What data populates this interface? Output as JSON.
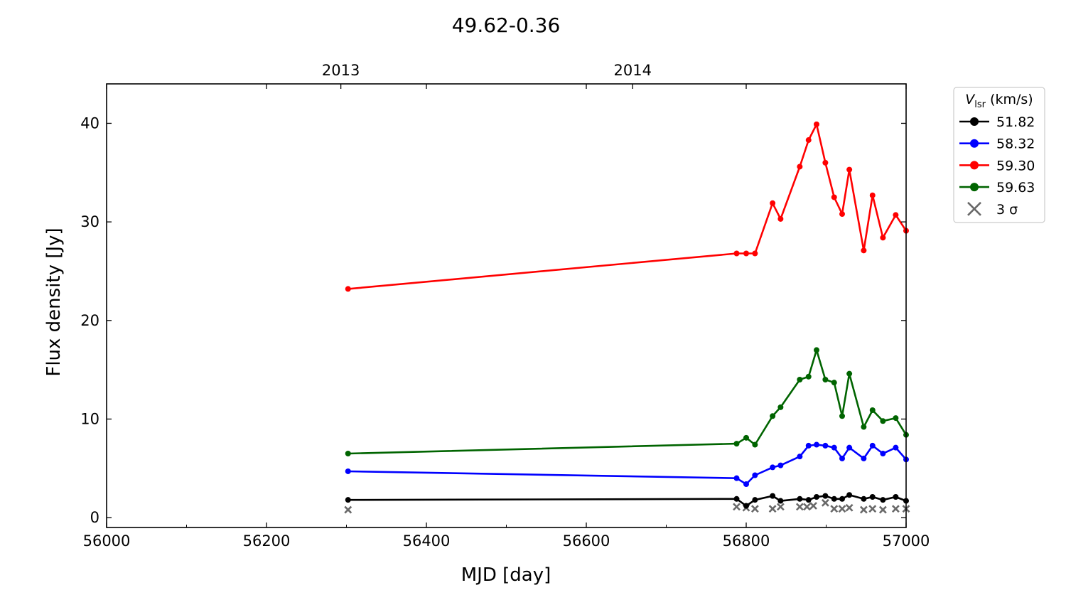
{
  "chart_data": {
    "type": "line",
    "title": "49.62-0.36",
    "xlabel": "MJD [day]",
    "ylabel": "Flux density [Jy]",
    "xlim": [
      56000,
      57000
    ],
    "ylim": [
      -1,
      44
    ],
    "x_ticks": [
      56000,
      56200,
      56400,
      56600,
      56800,
      57000
    ],
    "y_ticks": [
      0,
      10,
      20,
      30,
      40
    ],
    "top_axis": {
      "ticks": [
        {
          "x": 56293,
          "label": "2013"
        },
        {
          "x": 56658,
          "label": "2014"
        }
      ]
    },
    "grid": false,
    "legend": {
      "title_main": "V",
      "title_sub": "lsr",
      "title_unit": " (km/s)",
      "placement": "outside-right-top",
      "sigma_label": "3 σ"
    },
    "x": [
      56302,
      56788,
      56800,
      56811,
      56833,
      56843,
      56867,
      56878,
      56888,
      56899,
      56910,
      56920,
      56929,
      56947,
      56958,
      56971,
      56987,
      57000
    ],
    "series": [
      {
        "name": "51.82",
        "color": "#000000",
        "values": [
          1.8,
          1.9,
          1.2,
          1.8,
          2.2,
          1.7,
          1.9,
          1.8,
          2.1,
          2.2,
          1.9,
          1.9,
          2.3,
          1.9,
          2.1,
          1.8,
          2.1,
          1.7
        ]
      },
      {
        "name": "58.32",
        "color": "#0000ff",
        "values": [
          4.7,
          4.0,
          3.4,
          4.3,
          5.1,
          5.3,
          6.2,
          7.3,
          7.4,
          7.3,
          7.1,
          6.0,
          7.1,
          6.0,
          7.3,
          6.5,
          7.1,
          5.9
        ]
      },
      {
        "name": "59.30",
        "color": "#ff0000",
        "values": [
          23.2,
          26.8,
          26.8,
          26.8,
          31.9,
          30.3,
          35.6,
          38.3,
          39.9,
          36.0,
          32.5,
          30.8,
          35.3,
          27.1,
          32.7,
          28.4,
          30.7,
          29.1
        ]
      },
      {
        "name": "59.63",
        "color": "#006400",
        "values": [
          6.5,
          7.5,
          8.1,
          7.4,
          10.3,
          11.2,
          14.0,
          14.3,
          17.0,
          14.0,
          13.7,
          10.3,
          14.6,
          9.2,
          10.9,
          9.8,
          10.1,
          8.4
        ]
      }
    ],
    "sigma_points": {
      "name": "3 σ",
      "color": "#696969",
      "x": [
        56302,
        56788,
        56800,
        56811,
        56833,
        56843,
        56867,
        56876,
        56884,
        56899,
        56910,
        56920,
        56929,
        56947,
        56958,
        56971,
        56987,
        57000
      ],
      "values": [
        0.8,
        1.1,
        1.0,
        0.9,
        0.9,
        1.1,
        1.1,
        1.1,
        1.2,
        1.5,
        0.9,
        0.9,
        1.0,
        0.8,
        0.9,
        0.8,
        0.9,
        0.9
      ]
    }
  }
}
